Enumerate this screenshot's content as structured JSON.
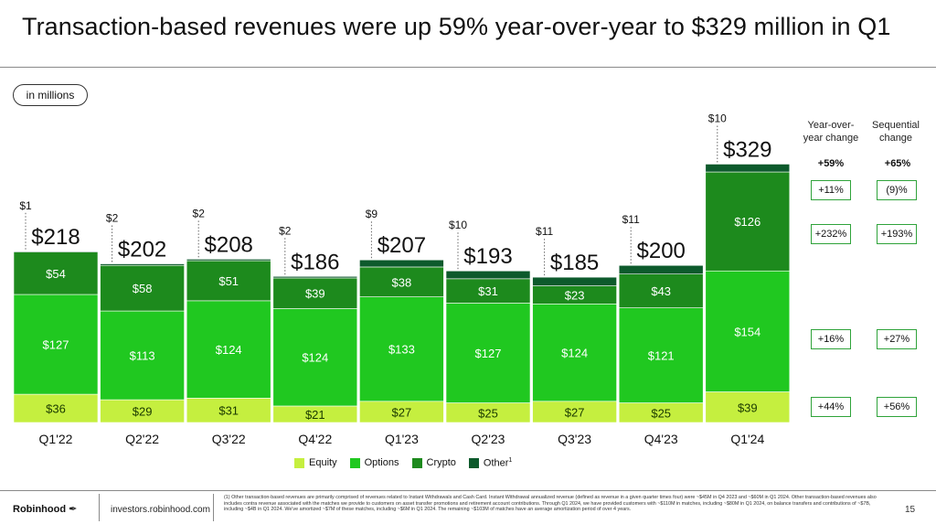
{
  "title": "Transaction-based revenues were up 59% year-over-year to $329 million in Q1",
  "units_label": "in millions",
  "chart_data": {
    "type": "bar",
    "stacked": true,
    "categories": [
      "Q1'22",
      "Q2'22",
      "Q3'22",
      "Q4'22",
      "Q1'23",
      "Q2'23",
      "Q3'23",
      "Q4'23",
      "Q1'24"
    ],
    "series": [
      {
        "name": "Equity",
        "values": [
          36,
          29,
          31,
          21,
          27,
          25,
          27,
          25,
          39
        ],
        "labels": [
          "$36",
          "$29",
          "$31",
          "$21",
          "$27",
          "$25",
          "$27",
          "$25",
          "$39"
        ]
      },
      {
        "name": "Options",
        "values": [
          127,
          113,
          124,
          124,
          133,
          127,
          124,
          121,
          154
        ],
        "labels": [
          "$127",
          "$113",
          "$124",
          "$124",
          "$133",
          "$127",
          "$124",
          "$121",
          "$154"
        ]
      },
      {
        "name": "Crypto",
        "values": [
          54,
          58,
          51,
          39,
          38,
          31,
          23,
          43,
          126
        ],
        "labels": [
          "$54",
          "$58",
          "$51",
          "$39",
          "$38",
          "$31",
          "$23",
          "$43",
          "$126"
        ]
      },
      {
        "name": "Other",
        "values": [
          1,
          2,
          2,
          2,
          9,
          10,
          11,
          11,
          10
        ],
        "labels": [
          "$1",
          "$2",
          "$2",
          "$2",
          "$9",
          "$10",
          "$11",
          "$11",
          "$10"
        ]
      }
    ],
    "totals": [
      218,
      202,
      208,
      186,
      207,
      193,
      185,
      200,
      329
    ],
    "total_labels": [
      "$218",
      "$202",
      "$208",
      "$186",
      "$207",
      "$193",
      "$185",
      "$200",
      "$329"
    ],
    "ylim": [
      0,
      340
    ],
    "legend_position": "bottom",
    "legend_labels": [
      "Equity",
      "Options",
      "Crypto",
      "Other"
    ],
    "legend_superscript": "1",
    "colors": {
      "Equity": "#c5ef3f",
      "Options": "#20c820",
      "Crypto": "#1d8a1d",
      "Other": "#0d5a2c"
    }
  },
  "changes": {
    "yoy_header": "Year-over-\nyear change",
    "seq_header": "Sequential\nchange",
    "total_yoy": "+59%",
    "total_seq": "+65%",
    "rows": [
      {
        "segment": "Other",
        "yoy": "+11%",
        "seq": "(9)%",
        "border": "#0d5a2c"
      },
      {
        "segment": "Crypto",
        "yoy": "+232%",
        "seq": "+193%",
        "border": "#1d8a1d"
      },
      {
        "segment": "Options",
        "yoy": "+16%",
        "seq": "+27%",
        "border": "#20c820"
      },
      {
        "segment": "Equity",
        "yoy": "+44%",
        "seq": "+56%",
        "border": "#b8e430"
      }
    ]
  },
  "footer": {
    "logo": "Robinhood",
    "url": "investors.robinhood.com",
    "footnote": "(1) Other transaction-based revenues are primarily comprised of revenues related to Instant Withdrawals and Cash Card. Instant Withdrawal annualized revenue (defined as revenue in a given quarter times four) were ~$45M in Q4 2023 and ~$60M in Q1 2024. Other transaction-based revenues also includes contra revenue associated with the matches we provide to customers on asset transfer promotions and retirement account contributions. Through Q1 2024, we have provided customers with ~$110M in matches, including ~$80M in Q1 2024, on balance transfers and contributions of ~$7B, including ~$4B in Q1 2024. We've amortized ~$7M of these matches, including ~$6M in Q1 2024. The remaining ~$103M of matches have an average amortization period of over 4 years.",
    "page_number": "15"
  }
}
